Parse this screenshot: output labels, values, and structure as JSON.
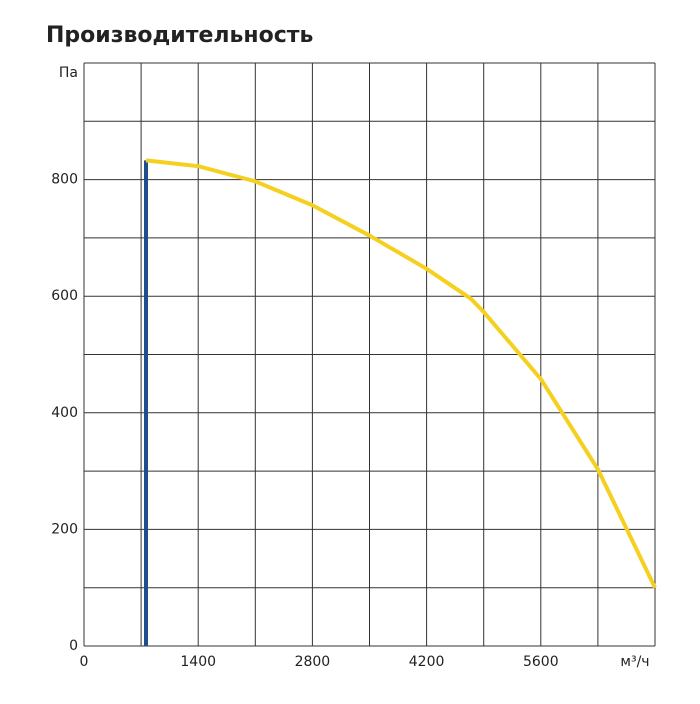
{
  "chart_data": {
    "type": "line",
    "title": "Производительность",
    "xlim": [
      0,
      7000
    ],
    "ylim": [
      0,
      1000
    ],
    "xticks": [
      0,
      1400,
      2800,
      4200,
      5600,
      {
        "value": 7000,
        "label": "м³/ч"
      }
    ],
    "yticks": [
      0,
      200,
      400,
      600,
      800,
      {
        "value": 1000,
        "label": "Па"
      }
    ],
    "xgrid": [
      700,
      2100,
      3500,
      4900,
      6300
    ],
    "ygrid": [
      100,
      300,
      500,
      700,
      900
    ],
    "grid": true,
    "series": [
      {
        "color": "#1f4e8c",
        "x": [
          760,
          760
        ],
        "values": [
          0,
          833
        ]
      },
      {
        "color": "#f5d020",
        "x": [
          760,
          1400,
          2100,
          2800,
          3500,
          4200,
          4740,
          4900,
          5600,
          6300,
          7000
        ],
        "values": [
          833,
          823,
          797,
          756,
          704,
          647,
          596,
          573,
          458,
          303,
          100
        ]
      }
    ]
  }
}
